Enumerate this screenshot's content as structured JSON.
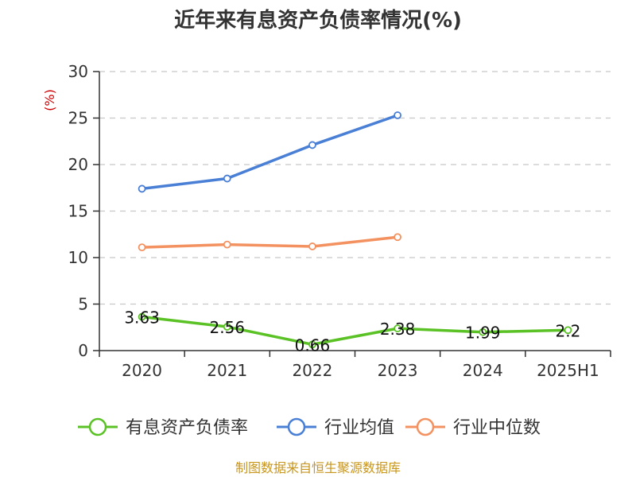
{
  "chart_data": {
    "type": "line",
    "title": "近年来有息资产负债率情况(%)",
    "ylabel": "(%)",
    "categories": [
      "2020",
      "2021",
      "2022",
      "2023",
      "2024",
      "2025H1"
    ],
    "ylim": [
      0,
      30
    ],
    "yticks": [
      0,
      5,
      10,
      15,
      20,
      25,
      30
    ],
    "grid": true,
    "legend_position": "bottom",
    "series": [
      {
        "name": "有息资产负债率",
        "color": "#5bc226",
        "values": [
          3.63,
          2.56,
          0.66,
          2.38,
          1.99,
          2.2
        ],
        "labels": [
          "3.63",
          "2.56",
          "0.66",
          "2.38",
          "1.99",
          "2.2"
        ]
      },
      {
        "name": "行业均值",
        "color": "#4a7fd6",
        "values": [
          17.4,
          18.5,
          22.1,
          25.3,
          null,
          null
        ]
      },
      {
        "name": "行业中位数",
        "color": "#f39260",
        "values": [
          11.1,
          11.4,
          11.2,
          12.2,
          null,
          null
        ]
      }
    ],
    "source": "制图数据来自恒生聚源数据库"
  }
}
